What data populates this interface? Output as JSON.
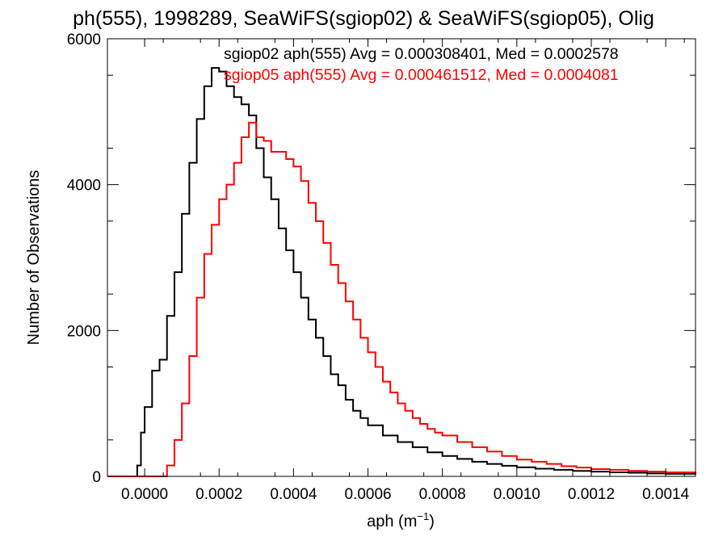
{
  "chart_data": {
    "type": "line",
    "style": "step-histogram",
    "title": "ph(555), 1998289, SeaWiFS(sgiop02) & SeaWiFS(sgiop05), Olig",
    "xlabel": "aph (m",
    "xlabel_sup": "−1",
    "xlabel_close": ")",
    "ylabel": "Number of Observations",
    "xlim": [
      -0.0001,
      0.00148
    ],
    "ylim": [
      0,
      6000
    ],
    "xticks": [
      0.0,
      0.0002,
      0.0004,
      0.0006,
      0.0008,
      0.001,
      0.0012,
      0.0014
    ],
    "xtick_labels": [
      "0.0000",
      "0.0002",
      "0.0004",
      "0.0006",
      "0.0008",
      "0.0010",
      "0.0012",
      "0.0014"
    ],
    "yticks": [
      0,
      2000,
      4000,
      6000
    ],
    "ytick_labels": [
      "0",
      "2000",
      "4000",
      "6000"
    ],
    "legend_position": "top-right",
    "legend": [
      "sgiop02 aph(555) Avg = 0.000308401, Med = 0.0002578",
      "sgiop05 aph(555) Avg = 0.000461512, Med = 0.0004081"
    ],
    "series": [
      {
        "name": "sgiop02",
        "color": "#000000",
        "x": [
          -0.0001,
          -4e-05,
          -2e-05,
          -1e-05,
          0.0,
          2e-05,
          4e-05,
          6e-05,
          8e-05,
          0.0001,
          0.00012,
          0.00014,
          0.00016,
          0.00018,
          0.0002,
          0.00022,
          0.00024,
          0.00026,
          0.00028,
          0.0003,
          0.00032,
          0.00034,
          0.00036,
          0.00038,
          0.0004,
          0.00042,
          0.00044,
          0.00046,
          0.00048,
          0.0005,
          0.00052,
          0.00054,
          0.00056,
          0.00058,
          0.0006,
          0.00064,
          0.00068,
          0.00072,
          0.00076,
          0.0008,
          0.00084,
          0.00088,
          0.00092,
          0.00096,
          0.001,
          0.00105,
          0.0011,
          0.00115,
          0.0012,
          0.00125,
          0.0013,
          0.00135,
          0.0014,
          0.00148
        ],
        "values": [
          0,
          0,
          150,
          600,
          950,
          1450,
          1600,
          2200,
          2800,
          3600,
          4300,
          4900,
          5350,
          5600,
          5550,
          5350,
          5200,
          5100,
          4950,
          4500,
          4100,
          3800,
          3400,
          3100,
          2800,
          2450,
          2150,
          1900,
          1650,
          1400,
          1250,
          1050,
          900,
          800,
          700,
          560,
          470,
          400,
          330,
          280,
          240,
          200,
          170,
          145,
          125,
          105,
          90,
          75,
          65,
          55,
          50,
          40,
          35,
          30
        ]
      },
      {
        "name": "sgiop05",
        "color": "#ff0000",
        "x": [
          -0.0001,
          4e-05,
          6e-05,
          8e-05,
          0.0001,
          0.00012,
          0.00014,
          0.00016,
          0.00018,
          0.0002,
          0.00022,
          0.00024,
          0.00026,
          0.00028,
          0.0003,
          0.00032,
          0.00034,
          0.00036,
          0.00038,
          0.0004,
          0.00042,
          0.00044,
          0.00046,
          0.00048,
          0.0005,
          0.00052,
          0.00054,
          0.00056,
          0.00058,
          0.0006,
          0.00062,
          0.00064,
          0.00066,
          0.00068,
          0.0007,
          0.00072,
          0.00074,
          0.00076,
          0.00078,
          0.0008,
          0.00084,
          0.00088,
          0.00092,
          0.00096,
          0.001,
          0.00104,
          0.00108,
          0.00112,
          0.00116,
          0.0012,
          0.00125,
          0.0013,
          0.00135,
          0.0014,
          0.00148
        ],
        "values": [
          0,
          0,
          150,
          500,
          1000,
          1650,
          2450,
          3050,
          3450,
          3800,
          4000,
          4300,
          4650,
          4850,
          4650,
          4600,
          4450,
          4450,
          4350,
          4250,
          4050,
          3750,
          3500,
          3200,
          2900,
          2650,
          2400,
          2150,
          1900,
          1700,
          1500,
          1300,
          1150,
          1000,
          900,
          800,
          720,
          650,
          600,
          560,
          470,
          400,
          340,
          280,
          230,
          200,
          170,
          140,
          120,
          100,
          90,
          75,
          65,
          55,
          45
        ]
      }
    ]
  }
}
